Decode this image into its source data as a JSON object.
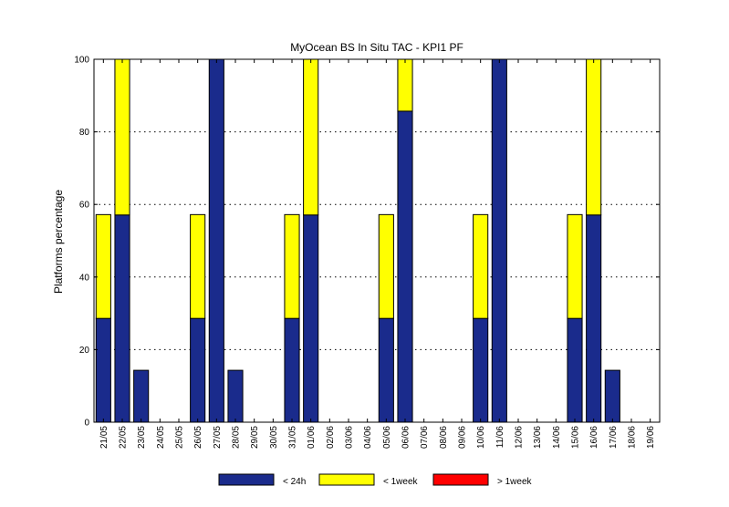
{
  "chart_data": {
    "type": "bar",
    "stacked": true,
    "title": "MyOcean  BS In Situ TAC - KPI1  PF",
    "xlabel": "",
    "ylabel": "Platforms percentage",
    "ylim": [
      0,
      100
    ],
    "yticks": [
      0,
      20,
      40,
      60,
      80,
      100
    ],
    "grid": true,
    "legend_position": "bottom",
    "categories": [
      "21/05",
      "22/05",
      "23/05",
      "24/05",
      "25/05",
      "26/05",
      "27/05",
      "28/05",
      "29/05",
      "30/05",
      "31/05",
      "01/06",
      "02/06",
      "03/06",
      "04/06",
      "05/06",
      "06/06",
      "07/06",
      "08/06",
      "09/06",
      "10/06",
      "11/06",
      "12/06",
      "13/06",
      "14/06",
      "15/06",
      "16/06",
      "17/06",
      "18/06",
      "19/06"
    ],
    "series": [
      {
        "name": "< 24h",
        "color": "#1a2b8c",
        "values": [
          28.6,
          57.1,
          14.3,
          0,
          0,
          28.6,
          100,
          14.3,
          0,
          0,
          28.6,
          57.1,
          0,
          0,
          0,
          28.6,
          85.7,
          0,
          0,
          0,
          28.6,
          100,
          0,
          0,
          0,
          28.6,
          57.1,
          14.3,
          0,
          0
        ]
      },
      {
        "name": "< 1week",
        "color": "#ffff00",
        "values": [
          28.6,
          42.9,
          0,
          0,
          0,
          28.6,
          0,
          0,
          0,
          0,
          28.6,
          42.9,
          0,
          0,
          0,
          28.6,
          14.3,
          0,
          0,
          0,
          28.6,
          0,
          0,
          0,
          0,
          28.6,
          42.9,
          0,
          0,
          0
        ]
      },
      {
        "name": "> 1week",
        "color": "#ff0000",
        "values": [
          0,
          0,
          0,
          0,
          0,
          0,
          0,
          0,
          0,
          0,
          0,
          0,
          0,
          0,
          0,
          0,
          0,
          0,
          0,
          0,
          0,
          0,
          0,
          0,
          0,
          0,
          0,
          0,
          0,
          0
        ]
      }
    ]
  }
}
